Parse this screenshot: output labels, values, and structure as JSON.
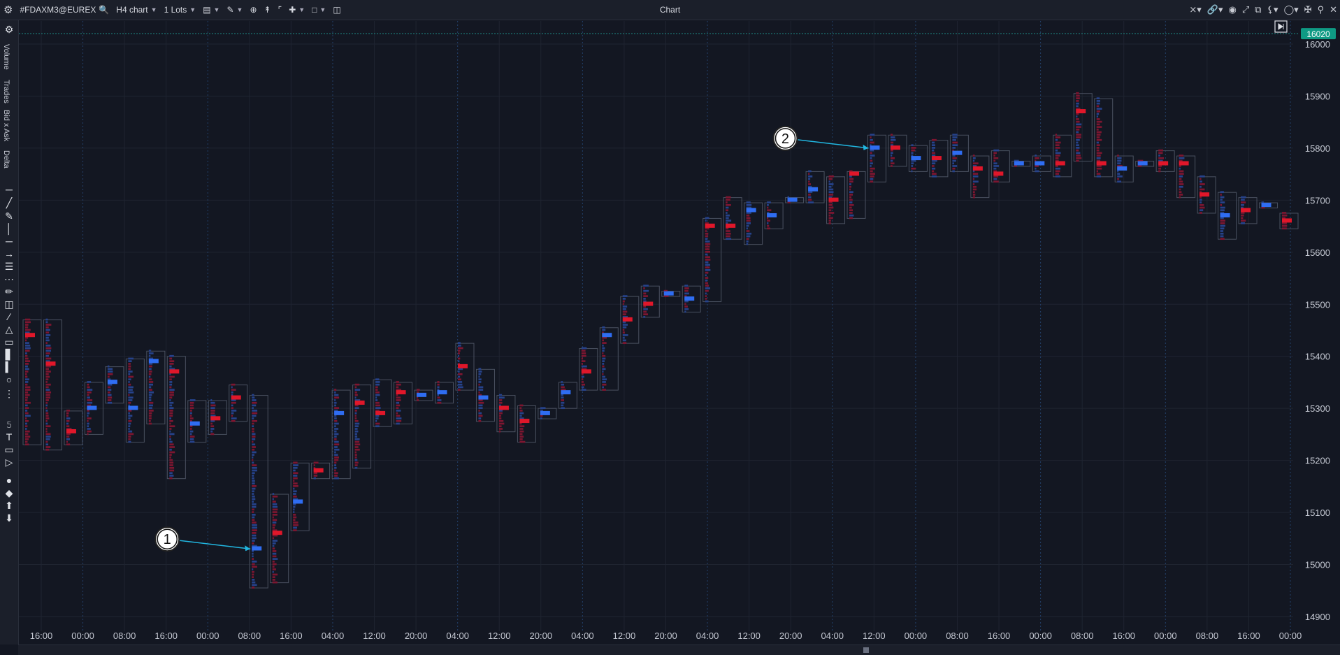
{
  "toolbar": {
    "symbol": "#FDAXM3@EUREX",
    "timeframe": "H4 chart",
    "lots": "1 Lots",
    "window_title": "Chart"
  },
  "left_panel": {
    "labels": [
      "Volume",
      "Trades",
      "Bid x Ask",
      "Delta"
    ]
  },
  "colors": {
    "background": "#131722",
    "grid": "#1f2431",
    "bid": "#e0172a",
    "bid_dark": "#7c1630",
    "ask": "#2f6df2",
    "ask_dark": "#26428a",
    "box": "#4a5160",
    "price_badge": "#0f9a84",
    "annotation_arrow": "#21b6e0"
  },
  "chart_data": {
    "type": "footprint",
    "ylim": [
      14890,
      16030
    ],
    "y_ticks": [
      14900,
      15000,
      15100,
      15200,
      15300,
      15400,
      15500,
      15600,
      15700,
      15800,
      15900,
      16000
    ],
    "x_tick_labels": [
      "16:00",
      "00:00",
      "08:00",
      "16:00",
      "00:00",
      "08:00",
      "16:00",
      "04:00",
      "12:00",
      "20:00",
      "04:00",
      "12:00",
      "20:00",
      "04:00",
      "12:00",
      "20:00",
      "04:00",
      "12:00",
      "20:00",
      "04:00",
      "12:00",
      "00:00",
      "08:00",
      "16:00",
      "00:00",
      "08:00",
      "16:00",
      "00:00",
      "08:00",
      "16:00",
      "00:00"
    ],
    "last_price": 16020,
    "last_price_label": "16020",
    "candles": [
      {
        "low": 15230,
        "high": 15470,
        "poc": 15440,
        "dir": "bid"
      },
      {
        "low": 15220,
        "high": 15470,
        "poc": 15385,
        "dir": "bid"
      },
      {
        "low": 15230,
        "high": 15295,
        "poc": 15255,
        "dir": "bid"
      },
      {
        "low": 15250,
        "high": 15350,
        "poc": 15300,
        "dir": "ask"
      },
      {
        "low": 15310,
        "high": 15380,
        "poc": 15350,
        "dir": "ask"
      },
      {
        "low": 15235,
        "high": 15395,
        "poc": 15300,
        "dir": "ask"
      },
      {
        "low": 15270,
        "high": 15410,
        "poc": 15390,
        "dir": "ask"
      },
      {
        "low": 15165,
        "high": 15400,
        "poc": 15370,
        "dir": "bid"
      },
      {
        "low": 15235,
        "high": 15315,
        "poc": 15270,
        "dir": "ask"
      },
      {
        "low": 15250,
        "high": 15315,
        "poc": 15280,
        "dir": "bid"
      },
      {
        "low": 15275,
        "high": 15345,
        "poc": 15320,
        "dir": "bid"
      },
      {
        "low": 14955,
        "high": 15325,
        "poc": 15030,
        "dir": "ask"
      },
      {
        "low": 14965,
        "high": 15135,
        "poc": 15060,
        "dir": "bid"
      },
      {
        "low": 15065,
        "high": 15195,
        "poc": 15120,
        "dir": "ask"
      },
      {
        "low": 15165,
        "high": 15195,
        "poc": 15180,
        "dir": "bid"
      },
      {
        "low": 15165,
        "high": 15335,
        "poc": 15290,
        "dir": "ask"
      },
      {
        "low": 15185,
        "high": 15345,
        "poc": 15310,
        "dir": "bid"
      },
      {
        "low": 15265,
        "high": 15355,
        "poc": 15290,
        "dir": "bid"
      },
      {
        "low": 15270,
        "high": 15350,
        "poc": 15330,
        "dir": "bid"
      },
      {
        "low": 15315,
        "high": 15335,
        "poc": 15325,
        "dir": "ask"
      },
      {
        "low": 15310,
        "high": 15350,
        "poc": 15330,
        "dir": "ask"
      },
      {
        "low": 15335,
        "high": 15425,
        "poc": 15380,
        "dir": "bid"
      },
      {
        "low": 15275,
        "high": 15375,
        "poc": 15320,
        "dir": "ask"
      },
      {
        "low": 15255,
        "high": 15325,
        "poc": 15300,
        "dir": "bid"
      },
      {
        "low": 15235,
        "high": 15305,
        "poc": 15275,
        "dir": "bid"
      },
      {
        "low": 15280,
        "high": 15300,
        "poc": 15290,
        "dir": "ask"
      },
      {
        "low": 15300,
        "high": 15350,
        "poc": 15330,
        "dir": "ask"
      },
      {
        "low": 15335,
        "high": 15415,
        "poc": 15370,
        "dir": "bid"
      },
      {
        "low": 15335,
        "high": 15455,
        "poc": 15440,
        "dir": "ask"
      },
      {
        "low": 15425,
        "high": 15515,
        "poc": 15470,
        "dir": "bid"
      },
      {
        "low": 15475,
        "high": 15535,
        "poc": 15500,
        "dir": "bid"
      },
      {
        "low": 15515,
        "high": 15525,
        "poc": 15520,
        "dir": "ask"
      },
      {
        "low": 15485,
        "high": 15535,
        "poc": 15510,
        "dir": "ask"
      },
      {
        "low": 15505,
        "high": 15665,
        "poc": 15650,
        "dir": "bid"
      },
      {
        "low": 15625,
        "high": 15705,
        "poc": 15650,
        "dir": "bid"
      },
      {
        "low": 15615,
        "high": 15695,
        "poc": 15680,
        "dir": "ask"
      },
      {
        "low": 15645,
        "high": 15695,
        "poc": 15670,
        "dir": "ask"
      },
      {
        "low": 15695,
        "high": 15705,
        "poc": 15700,
        "dir": "ask"
      },
      {
        "low": 15695,
        "high": 15755,
        "poc": 15720,
        "dir": "ask"
      },
      {
        "low": 15655,
        "high": 15745,
        "poc": 15700,
        "dir": "bid"
      },
      {
        "low": 15665,
        "high": 15755,
        "poc": 15750,
        "dir": "bid"
      },
      {
        "low": 15735,
        "high": 15825,
        "poc": 15800,
        "dir": "ask"
      },
      {
        "low": 15765,
        "high": 15825,
        "poc": 15800,
        "dir": "bid"
      },
      {
        "low": 15755,
        "high": 15805,
        "poc": 15780,
        "dir": "ask"
      },
      {
        "low": 15745,
        "high": 15815,
        "poc": 15780,
        "dir": "bid"
      },
      {
        "low": 15755,
        "high": 15825,
        "poc": 15790,
        "dir": "ask"
      },
      {
        "low": 15705,
        "high": 15785,
        "poc": 15760,
        "dir": "bid"
      },
      {
        "low": 15735,
        "high": 15795,
        "poc": 15750,
        "dir": "bid"
      },
      {
        "low": 15765,
        "high": 15775,
        "poc": 15770,
        "dir": "ask"
      },
      {
        "low": 15755,
        "high": 15785,
        "poc": 15770,
        "dir": "ask"
      },
      {
        "low": 15745,
        "high": 15825,
        "poc": 15770,
        "dir": "bid"
      },
      {
        "low": 15775,
        "high": 15905,
        "poc": 15870,
        "dir": "bid"
      },
      {
        "low": 15745,
        "high": 15895,
        "poc": 15770,
        "dir": "bid"
      },
      {
        "low": 15735,
        "high": 15785,
        "poc": 15760,
        "dir": "ask"
      },
      {
        "low": 15765,
        "high": 15775,
        "poc": 15770,
        "dir": "ask"
      },
      {
        "low": 15755,
        "high": 15795,
        "poc": 15770,
        "dir": "bid"
      },
      {
        "low": 15705,
        "high": 15785,
        "poc": 15770,
        "dir": "bid"
      },
      {
        "low": 15675,
        "high": 15745,
        "poc": 15710,
        "dir": "bid"
      },
      {
        "low": 15625,
        "high": 15715,
        "poc": 15670,
        "dir": "ask"
      },
      {
        "low": 15655,
        "high": 15705,
        "poc": 15680,
        "dir": "bid"
      },
      {
        "low": 15685,
        "high": 15695,
        "poc": 15690,
        "dir": "ask"
      },
      {
        "low": 15645,
        "high": 15675,
        "poc": 15660,
        "dir": "bid"
      }
    ],
    "annotations": [
      {
        "label": "1",
        "price": 15030,
        "candle_index": 11
      },
      {
        "label": "2",
        "price": 15800,
        "candle_index": 41
      }
    ]
  }
}
